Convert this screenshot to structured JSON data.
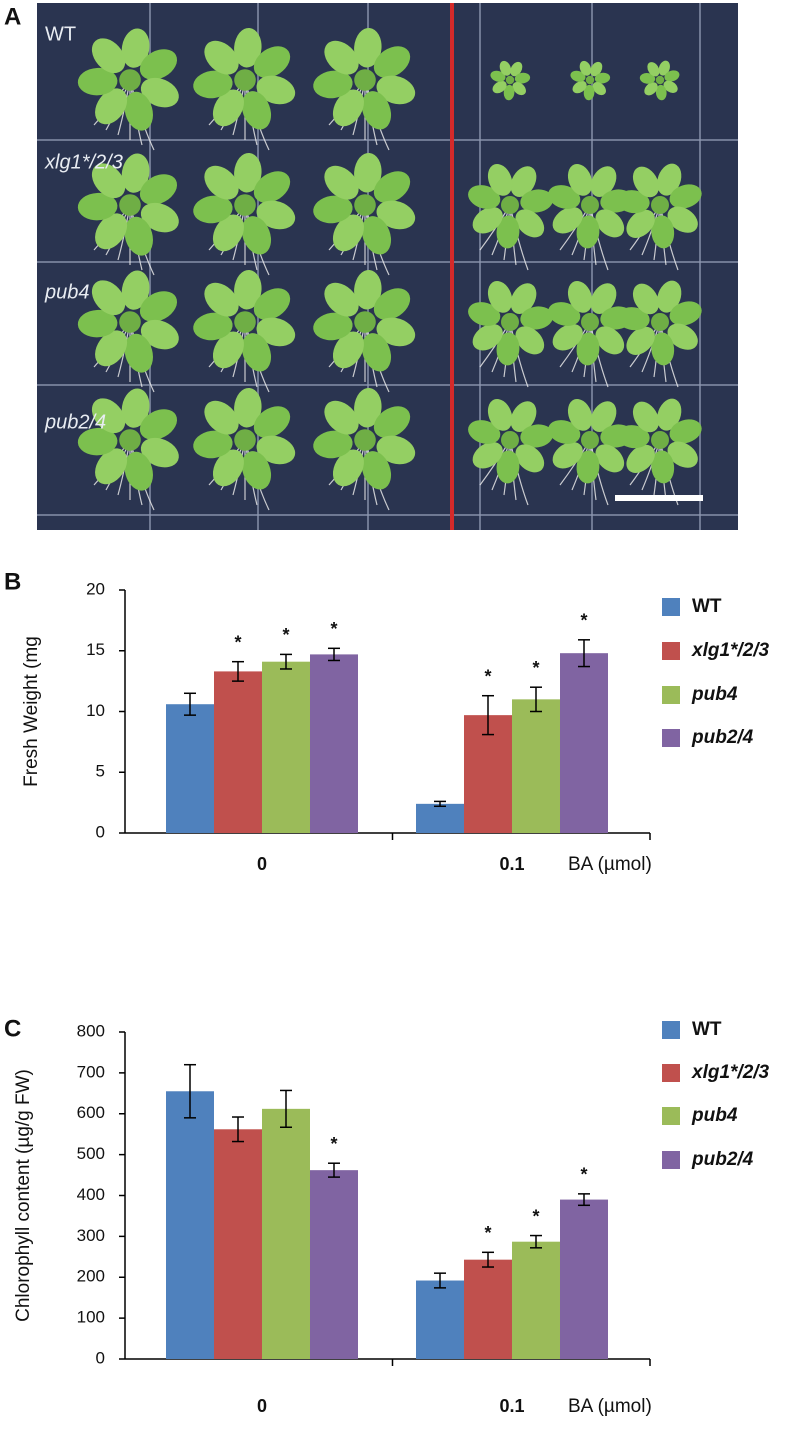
{
  "photo_panel": {
    "panel_label": "A",
    "row_labels": [
      "WT",
      "xlg1*/2/3",
      "pub4",
      "pub2/4"
    ]
  },
  "chart_data": [
    {
      "type": "bar",
      "panel_label": "B",
      "y_label": "Fresh Weight (mg",
      "x_label": "BA (µmol)",
      "categories": [
        "0",
        "0.1"
      ],
      "ylim": [
        0,
        20
      ],
      "yticks": [
        0,
        5,
        10,
        15,
        20
      ],
      "series": [
        {
          "name": "WT",
          "color": "#4f81bd",
          "italic": false,
          "values": [
            10.6,
            2.4
          ],
          "errors": [
            0.9,
            0.2
          ],
          "significance": [
            null,
            null
          ]
        },
        {
          "name": "xlg1*/2/3",
          "color": "#c0504d",
          "italic": true,
          "values": [
            13.3,
            9.7
          ],
          "errors": [
            0.8,
            1.6
          ],
          "significance": [
            "*",
            "*"
          ]
        },
        {
          "name": "pub4",
          "color": "#9bbb59",
          "italic": true,
          "values": [
            14.1,
            11.0
          ],
          "errors": [
            0.6,
            1.0
          ],
          "significance": [
            "*",
            "*"
          ]
        },
        {
          "name": "pub2/4",
          "color": "#8064a2",
          "italic": true,
          "values": [
            14.7,
            14.8
          ],
          "errors": [
            0.5,
            1.1
          ],
          "significance": [
            "*",
            "*"
          ]
        }
      ]
    },
    {
      "type": "bar",
      "panel_label": "C",
      "y_label": "Chlorophyll content (µg/g FW)",
      "x_label": "BA (µmol)",
      "categories": [
        "0",
        "0.1"
      ],
      "ylim": [
        0,
        800
      ],
      "yticks": [
        0,
        100,
        200,
        300,
        400,
        500,
        600,
        700,
        800
      ],
      "series": [
        {
          "name": "WT",
          "color": "#4f81bd",
          "italic": false,
          "values": [
            655,
            192
          ],
          "errors": [
            65,
            18
          ],
          "significance": [
            null,
            null
          ]
        },
        {
          "name": "xlg1*/2/3",
          "color": "#c0504d",
          "italic": true,
          "values": [
            562,
            243
          ],
          "errors": [
            30,
            18
          ],
          "significance": [
            null,
            "*"
          ]
        },
        {
          "name": "pub4",
          "color": "#9bbb59",
          "italic": true,
          "values": [
            612,
            287
          ],
          "errors": [
            45,
            15
          ],
          "significance": [
            null,
            "*"
          ]
        },
        {
          "name": "pub2/4",
          "color": "#8064a2",
          "italic": true,
          "values": [
            462,
            390
          ],
          "errors": [
            17,
            14
          ],
          "significance": [
            "*",
            "*"
          ]
        }
      ]
    }
  ]
}
